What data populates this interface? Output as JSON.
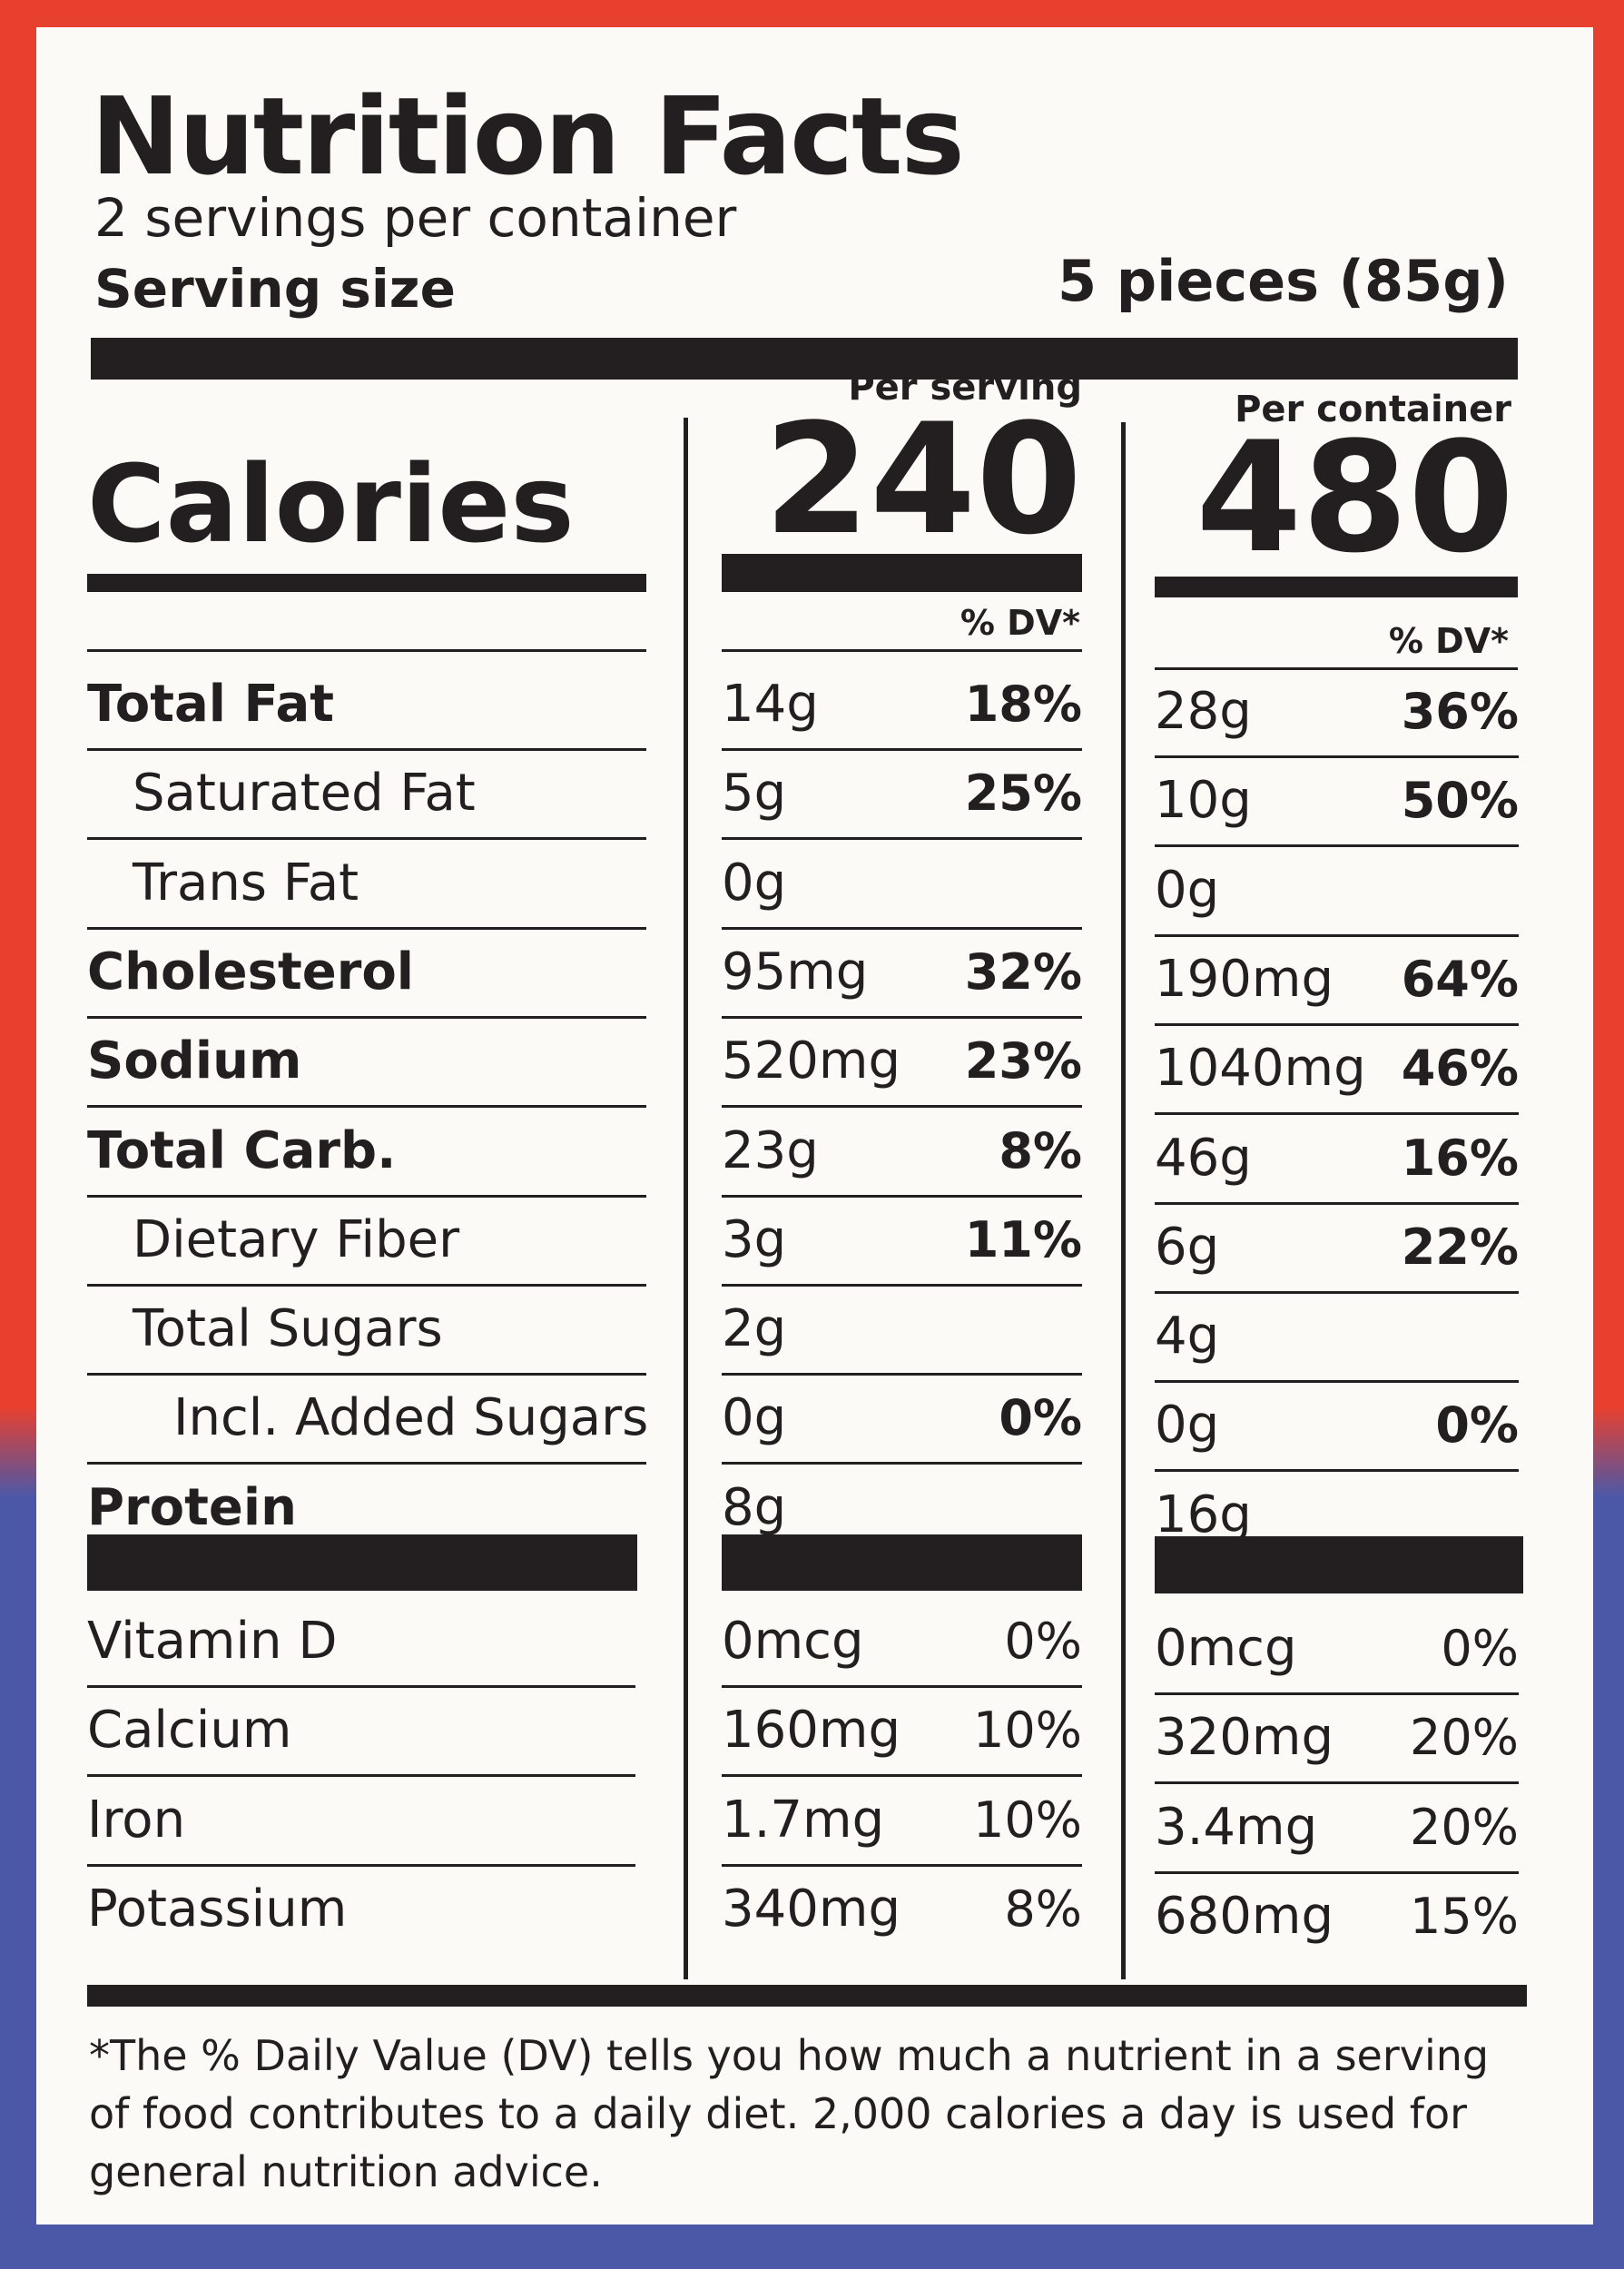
{
  "header": {
    "title": "Nutrition Facts",
    "servings": "2 servings per container",
    "serving_size_label": "Serving size",
    "serving_size": "5 pieces (85g)"
  },
  "columns": {
    "per_serving": "Per serving",
    "per_container": "Per container",
    "dv_heading": "% DV*"
  },
  "calories": {
    "label": "Calories",
    "per_serving": "240",
    "per_container": "480"
  },
  "rows": [
    {
      "label": "Total Fat",
      "per_serving": {
        "amount": "14g",
        "dv": "18%"
      },
      "per_container": {
        "amount": "28g",
        "dv": "36%"
      }
    },
    {
      "label": "Saturated Fat",
      "per_serving": {
        "amount": "5g",
        "dv": "25%"
      },
      "per_container": {
        "amount": "10g",
        "dv": "50%"
      }
    },
    {
      "label": "Trans Fat",
      "per_serving": {
        "amount": "0g"
      },
      "per_container": {
        "amount": "0g"
      }
    },
    {
      "label": "Cholesterol",
      "per_serving": {
        "amount": "95mg",
        "dv": "32%"
      },
      "per_container": {
        "amount": "190mg",
        "dv": "64%"
      }
    },
    {
      "label": "Sodium",
      "per_serving": {
        "amount": "520mg",
        "dv": "23%"
      },
      "per_container": {
        "amount": "1040mg",
        "dv": "46%"
      }
    },
    {
      "label": "Total Carb.",
      "per_serving": {
        "amount": "23g",
        "dv": "8%"
      },
      "per_container": {
        "amount": "46g",
        "dv": "16%"
      }
    },
    {
      "label": "Dietary Fiber",
      "per_serving": {
        "amount": "3g",
        "dv": "11%"
      },
      "per_container": {
        "amount": "6g",
        "dv": "22%"
      }
    },
    {
      "label": "Total Sugars",
      "per_serving": {
        "amount": "2g"
      },
      "per_container": {
        "amount": "4g"
      }
    },
    {
      "label": "Incl. Added Sugars",
      "per_serving": {
        "amount": "0g",
        "dv": "0%"
      },
      "per_container": {
        "amount": "0g",
        "dv": "0%"
      }
    },
    {
      "label": "Protein",
      "per_serving": {
        "amount": "8g"
      },
      "per_container": {
        "amount": "16g"
      }
    }
  ],
  "vitamins": [
    {
      "label": "Vitamin D",
      "per_serving": {
        "amount": "0mcg",
        "dv": "0%"
      },
      "per_container": {
        "amount": "0mcg",
        "dv": "0%"
      }
    },
    {
      "label": "Calcium",
      "per_serving": {
        "amount": "160mg",
        "dv": "10%"
      },
      "per_container": {
        "amount": "320mg",
        "dv": "20%"
      }
    },
    {
      "label": "Iron",
      "per_serving": {
        "amount": "1.7mg",
        "dv": "10%"
      },
      "per_container": {
        "amount": "3.4mg",
        "dv": "20%"
      }
    },
    {
      "label": "Potassium",
      "per_serving": {
        "amount": "340mg",
        "dv": "8%"
      },
      "per_container": {
        "amount": "680mg",
        "dv": "15%"
      }
    }
  ],
  "footnote": "*The % Daily Value (DV) tells you how much a nutrient in a serving of food contributes to a daily diet. 2,000 calories a day is used for general nutrition advice."
}
